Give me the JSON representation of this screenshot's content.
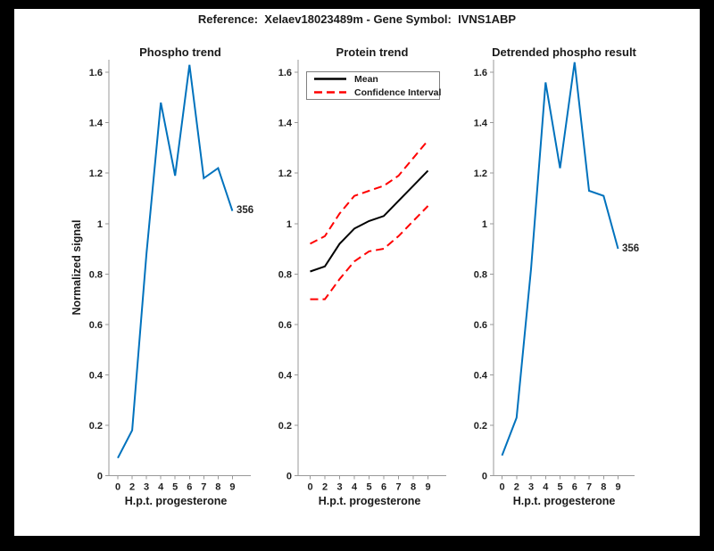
{
  "figure": {
    "suptitle": "Reference:  Xelaev18023489m - Gene Symbol:  IVNS1ABP",
    "background_color": "#000000",
    "canvas_color": "#ffffff",
    "text_color": "#1a1a1a",
    "axis_color": "#999999",
    "blue": "#0072BD",
    "red": "#ff0000",
    "black": "#000000"
  },
  "chart_data": [
    {
      "type": "line",
      "title": "Phospho trend",
      "xlabel": "H.p.t. progesterone",
      "ylabel": "Normalized signal",
      "x_ticklabels": [
        "0",
        "2",
        "3",
        "4",
        "5",
        "6",
        "7",
        "8",
        "9"
      ],
      "y_ticks": [
        0,
        0.2,
        0.4,
        0.6,
        0.8,
        1,
        1.2,
        1.4,
        1.6
      ],
      "y_ticklabels": [
        "0",
        "0.2",
        "0.4",
        "0.6",
        "0.8",
        "1",
        "1.2",
        "1.4",
        "1.6"
      ],
      "ylim": [
        0,
        1.65
      ],
      "grid": false,
      "legend": null,
      "series": [
        {
          "name": "phospho-signal",
          "color": "#0072BD",
          "style": "solid",
          "width": 2,
          "values": [
            0.07,
            0.18,
            0.88,
            1.48,
            1.19,
            1.63,
            1.18,
            1.22,
            1.05
          ]
        }
      ],
      "end_label": "356"
    },
    {
      "type": "line",
      "title": "Protein trend",
      "xlabel": "H.p.t. progesterone",
      "ylabel": "",
      "x_ticklabels": [
        "0",
        "2",
        "3",
        "4",
        "5",
        "6",
        "7",
        "8",
        "9"
      ],
      "y_ticks": [
        0,
        0.2,
        0.4,
        0.6,
        0.8,
        1,
        1.2,
        1.4,
        1.6
      ],
      "y_ticklabels": [
        "0",
        "0.2",
        "0.4",
        "0.6",
        "0.8",
        "1",
        "1.2",
        "1.4",
        "1.6"
      ],
      "ylim": [
        0,
        1.65
      ],
      "grid": false,
      "legend": {
        "position": "top-left",
        "items": [
          {
            "label": "Mean",
            "color": "#000000",
            "style": "solid"
          },
          {
            "label": "Confidence Interval",
            "color": "#ff0000",
            "style": "dashed"
          }
        ]
      },
      "series": [
        {
          "name": "confidence-upper",
          "color": "#ff0000",
          "style": "dashed",
          "width": 2,
          "values": [
            0.92,
            0.95,
            1.04,
            1.11,
            1.13,
            1.15,
            1.19,
            1.26,
            1.33
          ]
        },
        {
          "name": "confidence-lower",
          "color": "#ff0000",
          "style": "dashed",
          "width": 2,
          "values": [
            0.7,
            0.7,
            0.78,
            0.85,
            0.89,
            0.9,
            0.95,
            1.01,
            1.07
          ]
        },
        {
          "name": "mean",
          "color": "#000000",
          "style": "solid",
          "width": 2,
          "values": [
            0.81,
            0.83,
            0.92,
            0.98,
            1.01,
            1.03,
            1.09,
            1.15,
            1.21
          ]
        }
      ],
      "end_label": ""
    },
    {
      "type": "line",
      "title": "Detrended phospho result",
      "xlabel": "H.p.t. progesterone",
      "ylabel": "",
      "x_ticklabels": [
        "0",
        "2",
        "3",
        "4",
        "5",
        "6",
        "7",
        "8",
        "9"
      ],
      "y_ticks": [
        0,
        0.2,
        0.4,
        0.6,
        0.8,
        1,
        1.2,
        1.4,
        1.6
      ],
      "y_ticklabels": [
        "0",
        "0.2",
        "0.4",
        "0.6",
        "0.8",
        "1",
        "1.2",
        "1.4",
        "1.6"
      ],
      "ylim": [
        0,
        1.65
      ],
      "grid": false,
      "legend": null,
      "series": [
        {
          "name": "detrended-phospho-signal",
          "color": "#0072BD",
          "style": "solid",
          "width": 2,
          "values": [
            0.08,
            0.23,
            0.82,
            1.56,
            1.22,
            1.64,
            1.13,
            1.11,
            0.9
          ]
        }
      ],
      "end_label": "356"
    }
  ]
}
